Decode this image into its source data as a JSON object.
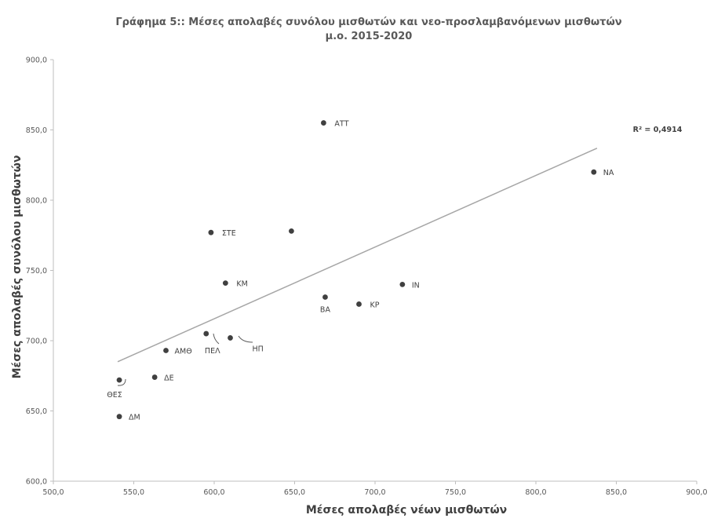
{
  "chart_data": {
    "type": "scatter",
    "title": [
      "Γράφημα 5:: Μέσες απολαβές συνόλου μισθωτών και νεο-προσλαμβανόμενων μισθωτών",
      "μ.ο. 2015-2020"
    ],
    "xlabel": "Μέσες απολαβές νέων μισθωτών",
    "ylabel": "Μέσες απολαβές συνόλου μισθωτών",
    "xlim": [
      500,
      900
    ],
    "ylim": [
      600,
      900
    ],
    "x_ticks": [
      "500,0",
      "550,0",
      "600,0",
      "650,0",
      "700,0",
      "750,0",
      "800,0",
      "850,0",
      "900,0"
    ],
    "y_ticks": [
      "600,0",
      "650,0",
      "700,0",
      "750,0",
      "800,0",
      "850,0",
      "900,0"
    ],
    "grid": false,
    "points": [
      {
        "x": 668,
        "y": 855,
        "label": "ΑΤΤ"
      },
      {
        "x": 836,
        "y": 820,
        "label": "ΝΑ"
      },
      {
        "x": 598,
        "y": 777,
        "label": "ΣΤΕ"
      },
      {
        "x": 648,
        "y": 778,
        "label": ""
      },
      {
        "x": 607,
        "y": 741,
        "label": "ΚΜ"
      },
      {
        "x": 717,
        "y": 740,
        "label": "ΙΝ"
      },
      {
        "x": 669,
        "y": 731,
        "label": "ΒΑ"
      },
      {
        "x": 690,
        "y": 726,
        "label": "ΚΡ"
      },
      {
        "x": 595,
        "y": 705,
        "label": "ΠΕΛ"
      },
      {
        "x": 610,
        "y": 702,
        "label": "ΗΠ"
      },
      {
        "x": 570,
        "y": 693,
        "label": "ΑΜΘ"
      },
      {
        "x": 563,
        "y": 674,
        "label": "ΔΕ"
      },
      {
        "x": 541,
        "y": 672,
        "label": "ΘΕΣ"
      },
      {
        "x": 541,
        "y": 646,
        "label": "ΔΜ"
      }
    ],
    "trendline": {
      "type": "linear",
      "x": [
        540,
        838
      ],
      "y": [
        685,
        837
      ],
      "r2_label": "R² = 0,4914"
    }
  }
}
